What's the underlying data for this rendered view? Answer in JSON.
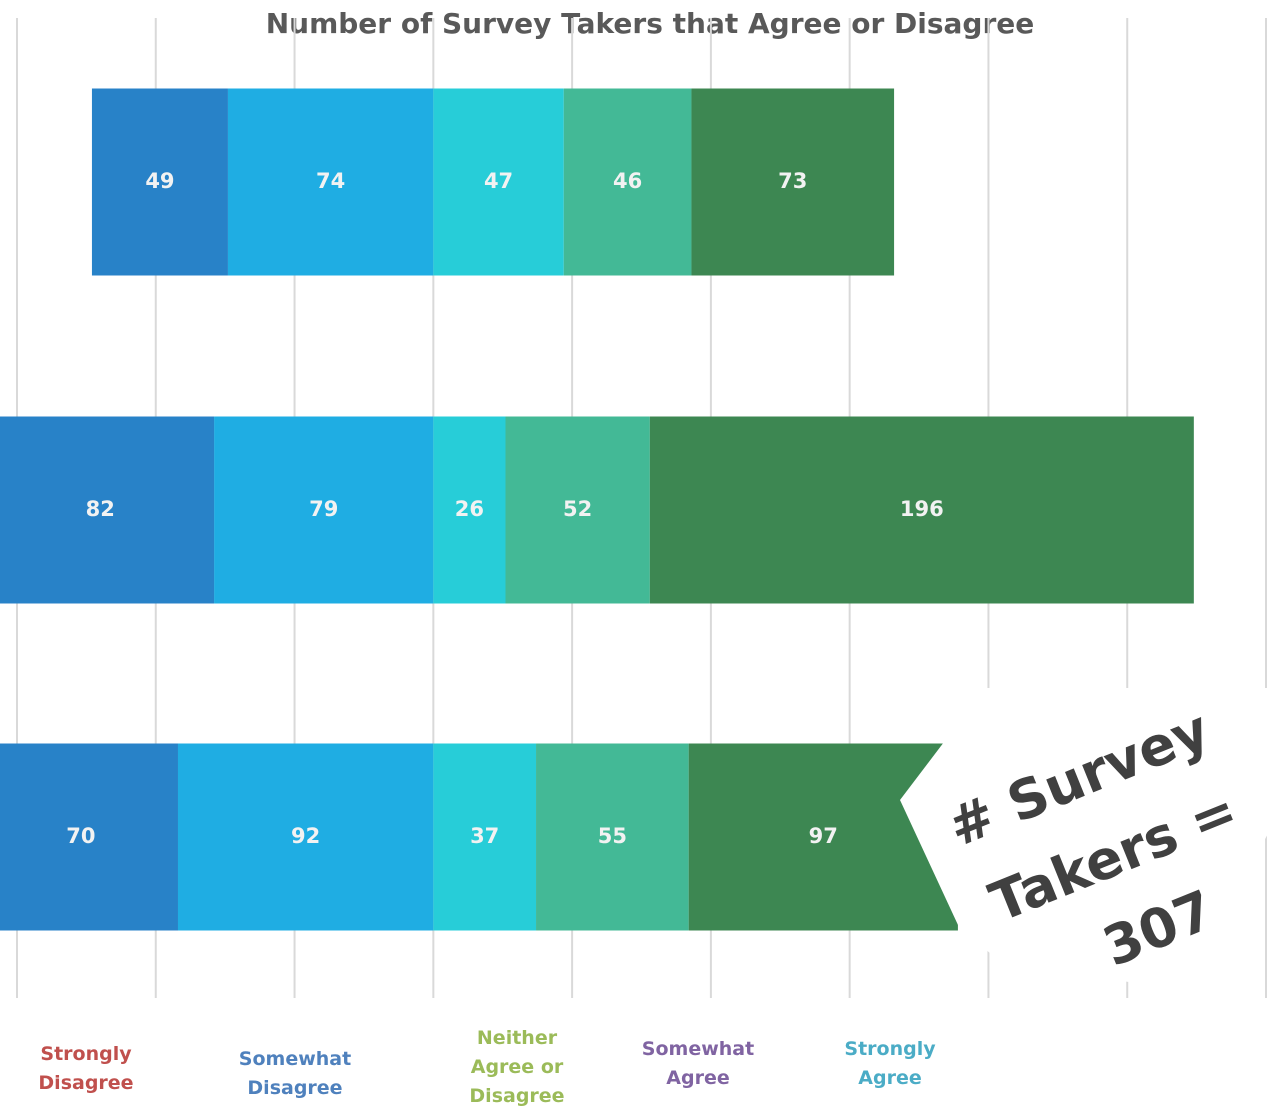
{
  "chart_data": {
    "type": "diverging_bar",
    "title": "Number of Survey Takers that Agree or Disagree",
    "categories": [
      null,
      null,
      null
    ],
    "series": [
      {
        "name": "Strongly Disagree",
        "color": "#2882c8",
        "side": "left",
        "values": [
          49,
          82,
          70
        ]
      },
      {
        "name": "Somewhat Disagree",
        "color": "#1fade3",
        "side": "left",
        "values": [
          74,
          79,
          92
        ]
      },
      {
        "name": "Neither Agree or Disagree",
        "color": "#27cdd8",
        "side": "right",
        "values": [
          47,
          26,
          37
        ]
      },
      {
        "name": "Somewhat Agree",
        "color": "#43b996",
        "side": "right",
        "values": [
          46,
          52,
          55
        ]
      },
      {
        "name": "Strongly Agree",
        "color": "#3d8752",
        "side": "right",
        "values": [
          73,
          196,
          97
        ]
      }
    ],
    "legend_text_colors": [
      "#c0504d",
      "#4f81bd",
      "#9bbb59",
      "#8064a2",
      "#4bacc6"
    ],
    "xlim": [
      -150,
      300
    ],
    "xticks": [
      -150,
      -100,
      -50,
      0,
      50,
      100,
      150,
      200,
      250,
      300
    ],
    "grid": true,
    "annotation": [
      "# Survey",
      "Takers =",
      "307"
    ]
  }
}
